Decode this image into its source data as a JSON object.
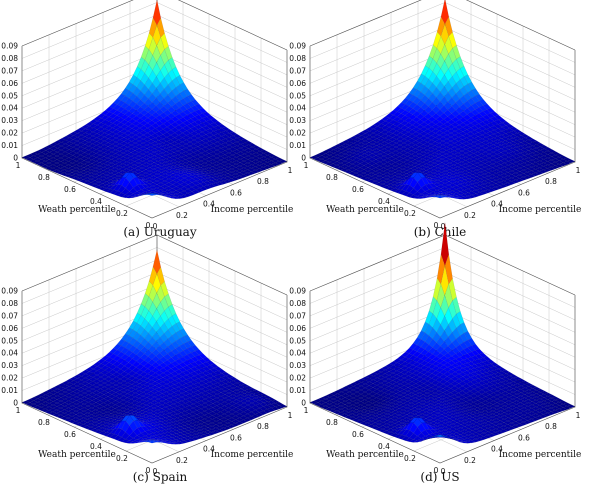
{
  "chart_data": [
    {
      "type": "surface3d",
      "caption": "(a) Uruguay",
      "xlabel": "Income percentile",
      "ylabel": "Weath percentile",
      "zlim": [
        0,
        0.09
      ],
      "zticks": [
        "0",
        "0.01",
        "0.02",
        "0.03",
        "0.04",
        "0.05",
        "0.06",
        "0.07",
        "0.08",
        "0.09"
      ],
      "xticks": [
        "0",
        "0.2",
        "0.4",
        "0.6",
        "0.8",
        "1"
      ],
      "yticks": [
        "0",
        "0.2",
        "0.4",
        "0.6",
        "0.8",
        "1"
      ],
      "peak": {
        "income": 1,
        "wealth": 1,
        "density": 0.076
      },
      "low_corner": {
        "income": 0,
        "wealth": 0,
        "density": 0.012
      }
    },
    {
      "type": "surface3d",
      "caption": "(b) Chile",
      "xlabel": "Income percentile",
      "ylabel": "Weath percentile",
      "zlim": [
        0,
        0.09
      ],
      "zticks": [
        "0",
        "0.01",
        "0.02",
        "0.03",
        "0.04",
        "0.05",
        "0.06",
        "0.07",
        "0.08",
        "0.09"
      ],
      "xticks": [
        "0",
        "0.2",
        "0.4",
        "0.6",
        "0.8",
        "1"
      ],
      "yticks": [
        "0",
        "0.2",
        "0.4",
        "0.6",
        "0.8",
        "1"
      ],
      "peak": {
        "income": 1,
        "wealth": 1,
        "density": 0.077
      },
      "low_corner": {
        "income": 0,
        "wealth": 0,
        "density": 0.01
      }
    },
    {
      "type": "surface3d",
      "caption": "(c) Spain",
      "xlabel": "Income percentile",
      "ylabel": "Weath percentile",
      "zlim": [
        0,
        0.09
      ],
      "zticks": [
        "0",
        "0.01",
        "0.02",
        "0.03",
        "0.04",
        "0.05",
        "0.06",
        "0.07",
        "0.08",
        "0.09"
      ],
      "xticks": [
        "0",
        "0.2",
        "0.4",
        "0.6",
        "0.8",
        "1"
      ],
      "yticks": [
        "0",
        "0.2",
        "0.4",
        "0.6",
        "0.8",
        "1"
      ],
      "peak": {
        "income": 1,
        "wealth": 1,
        "density": 0.072
      },
      "low_corner": {
        "income": 0,
        "wealth": 0,
        "density": 0.01
      }
    },
    {
      "type": "surface3d",
      "caption": "(d) US",
      "xlabel": "Income percentile",
      "ylabel": "Weath percentile",
      "zlim": [
        0,
        0.09
      ],
      "zticks": [
        "0",
        "0.01",
        "0.02",
        "0.03",
        "0.04",
        "0.05",
        "0.06",
        "0.07",
        "0.08",
        "0.09"
      ],
      "xticks": [
        "0",
        "0.2",
        "0.4",
        "0.6",
        "0.8",
        "1"
      ],
      "yticks": [
        "0",
        "0.2",
        "0.4",
        "0.6",
        "0.8",
        "1"
      ],
      "peak": {
        "income": 1,
        "wealth": 1,
        "density": 0.094
      },
      "low_corner": {
        "income": 0,
        "wealth": 0,
        "density": 0.015
      }
    }
  ]
}
